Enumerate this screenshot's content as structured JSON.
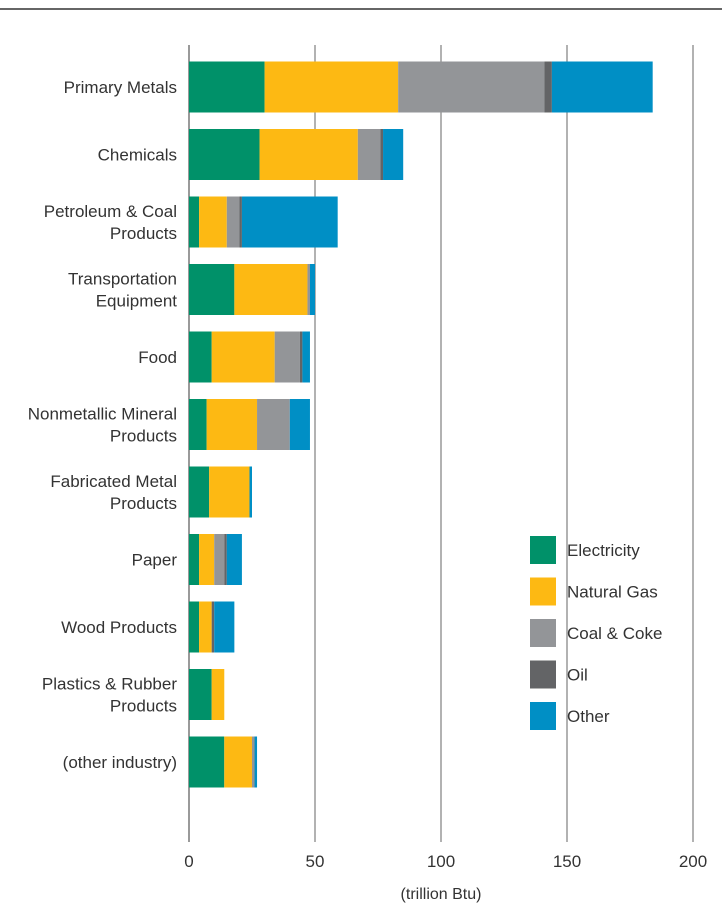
{
  "chart_data": {
    "type": "bar",
    "orientation": "horizontal",
    "stacked": true,
    "xlabel": "(trillion Btu)",
    "xlim": [
      0,
      200
    ],
    "xticks": [
      0,
      50,
      100,
      150,
      200
    ],
    "grid": true,
    "legend_position": "right",
    "categories": [
      [
        "Primary Metals"
      ],
      [
        "Chemicals"
      ],
      [
        "Petroleum & Coal",
        "Products"
      ],
      [
        "Transportation",
        "Equipment"
      ],
      [
        "Food"
      ],
      [
        "Nonmetallic Mineral",
        "Products"
      ],
      [
        "Fabricated Metal",
        "Products"
      ],
      [
        "Paper"
      ],
      [
        "Wood Products"
      ],
      [
        "Plastics & Rubber",
        "Products"
      ],
      [
        "(other industry)"
      ]
    ],
    "series": [
      {
        "name": "Electricity",
        "color": "#009169",
        "values": [
          30,
          28,
          4,
          18,
          9,
          7,
          8,
          4,
          4,
          9,
          14
        ]
      },
      {
        "name": "Natural Gas",
        "color": "#fdb913",
        "values": [
          53,
          39,
          11,
          29,
          25,
          20,
          16,
          6,
          5,
          5,
          11
        ]
      },
      {
        "name": "Coal & Coke",
        "color": "#939598",
        "values": [
          58,
          9,
          5,
          1,
          10,
          13,
          0,
          4,
          0,
          0,
          1
        ]
      },
      {
        "name": "Oil",
        "color": "#636466",
        "values": [
          3,
          1,
          1,
          0,
          1,
          0,
          0,
          1,
          1,
          0,
          0
        ]
      },
      {
        "name": "Other",
        "color": "#008fc5",
        "values": [
          40,
          8,
          38,
          2,
          3,
          8,
          1,
          6,
          8,
          0,
          1
        ]
      }
    ]
  }
}
